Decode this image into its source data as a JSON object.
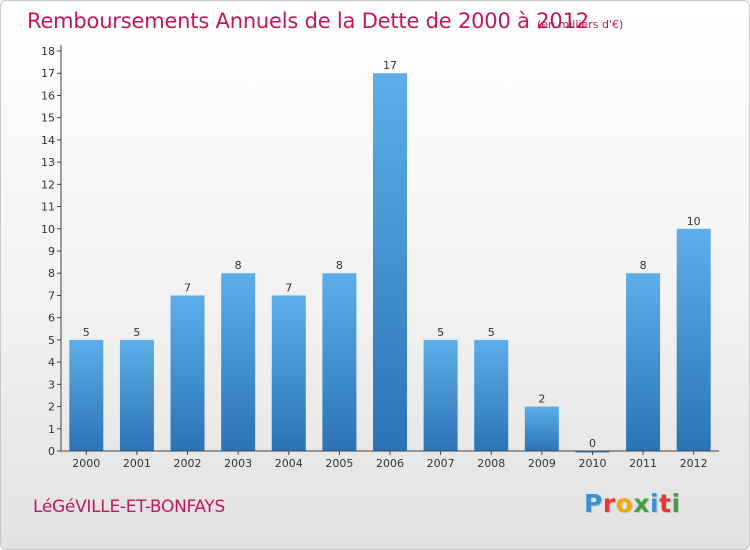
{
  "header": {
    "title": "Remboursements Annuels de la Dette de 2000 à 2012",
    "unit": "(en milliers d'€)"
  },
  "footer": {
    "commune": "LéGéVILLE-ET-BONFAYS",
    "logo_letters": [
      "P",
      "r",
      "o",
      "x",
      "i",
      "t",
      "i"
    ],
    "logo_colors": [
      "#3a8fd6",
      "#e53935",
      "#f2a900",
      "#43a047",
      "#3a8fd6",
      "#e53935",
      "#43a047"
    ]
  },
  "chart_data": {
    "type": "bar",
    "title": "Remboursements Annuels de la Dette de 2000 à 2012",
    "xlabel": "",
    "ylabel": "",
    "categories": [
      "2000",
      "2001",
      "2002",
      "2003",
      "2004",
      "2005",
      "2006",
      "2007",
      "2008",
      "2009",
      "2010",
      "2011",
      "2012"
    ],
    "values": [
      5,
      5,
      7,
      8,
      7,
      8,
      17,
      5,
      5,
      2,
      0,
      8,
      10
    ],
    "ylim": [
      0,
      18
    ],
    "yticks": [
      0,
      1,
      2,
      3,
      4,
      5,
      6,
      7,
      8,
      9,
      10,
      11,
      12,
      13,
      14,
      15,
      16,
      17,
      18
    ],
    "grid": false,
    "legend": "none",
    "bar_color_top": "#5daeea",
    "bar_color_bottom": "#2a74b5",
    "axis_color": "#444444"
  }
}
